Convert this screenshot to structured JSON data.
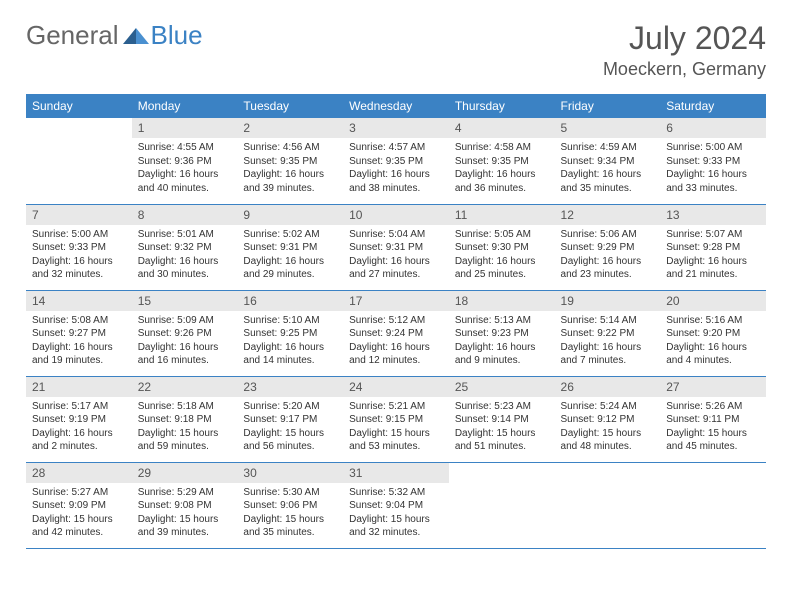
{
  "logo": {
    "part1": "General",
    "part2": "Blue"
  },
  "title": "July 2024",
  "location": "Moeckern, Germany",
  "weekdays": [
    "Sunday",
    "Monday",
    "Tuesday",
    "Wednesday",
    "Thursday",
    "Friday",
    "Saturday"
  ],
  "colors": {
    "header_bg": "#3b82c4",
    "header_text": "#ffffff",
    "daynum_bg": "#e8e8e8",
    "text": "#333333",
    "title_text": "#555555"
  },
  "first_weekday_offset": 1,
  "days": [
    {
      "n": 1,
      "sunrise": "4:55 AM",
      "sunset": "9:36 PM",
      "daylight": "16 hours and 40 minutes."
    },
    {
      "n": 2,
      "sunrise": "4:56 AM",
      "sunset": "9:35 PM",
      "daylight": "16 hours and 39 minutes."
    },
    {
      "n": 3,
      "sunrise": "4:57 AM",
      "sunset": "9:35 PM",
      "daylight": "16 hours and 38 minutes."
    },
    {
      "n": 4,
      "sunrise": "4:58 AM",
      "sunset": "9:35 PM",
      "daylight": "16 hours and 36 minutes."
    },
    {
      "n": 5,
      "sunrise": "4:59 AM",
      "sunset": "9:34 PM",
      "daylight": "16 hours and 35 minutes."
    },
    {
      "n": 6,
      "sunrise": "5:00 AM",
      "sunset": "9:33 PM",
      "daylight": "16 hours and 33 minutes."
    },
    {
      "n": 7,
      "sunrise": "5:00 AM",
      "sunset": "9:33 PM",
      "daylight": "16 hours and 32 minutes."
    },
    {
      "n": 8,
      "sunrise": "5:01 AM",
      "sunset": "9:32 PM",
      "daylight": "16 hours and 30 minutes."
    },
    {
      "n": 9,
      "sunrise": "5:02 AM",
      "sunset": "9:31 PM",
      "daylight": "16 hours and 29 minutes."
    },
    {
      "n": 10,
      "sunrise": "5:04 AM",
      "sunset": "9:31 PM",
      "daylight": "16 hours and 27 minutes."
    },
    {
      "n": 11,
      "sunrise": "5:05 AM",
      "sunset": "9:30 PM",
      "daylight": "16 hours and 25 minutes."
    },
    {
      "n": 12,
      "sunrise": "5:06 AM",
      "sunset": "9:29 PM",
      "daylight": "16 hours and 23 minutes."
    },
    {
      "n": 13,
      "sunrise": "5:07 AM",
      "sunset": "9:28 PM",
      "daylight": "16 hours and 21 minutes."
    },
    {
      "n": 14,
      "sunrise": "5:08 AM",
      "sunset": "9:27 PM",
      "daylight": "16 hours and 19 minutes."
    },
    {
      "n": 15,
      "sunrise": "5:09 AM",
      "sunset": "9:26 PM",
      "daylight": "16 hours and 16 minutes."
    },
    {
      "n": 16,
      "sunrise": "5:10 AM",
      "sunset": "9:25 PM",
      "daylight": "16 hours and 14 minutes."
    },
    {
      "n": 17,
      "sunrise": "5:12 AM",
      "sunset": "9:24 PM",
      "daylight": "16 hours and 12 minutes."
    },
    {
      "n": 18,
      "sunrise": "5:13 AM",
      "sunset": "9:23 PM",
      "daylight": "16 hours and 9 minutes."
    },
    {
      "n": 19,
      "sunrise": "5:14 AM",
      "sunset": "9:22 PM",
      "daylight": "16 hours and 7 minutes."
    },
    {
      "n": 20,
      "sunrise": "5:16 AM",
      "sunset": "9:20 PM",
      "daylight": "16 hours and 4 minutes."
    },
    {
      "n": 21,
      "sunrise": "5:17 AM",
      "sunset": "9:19 PM",
      "daylight": "16 hours and 2 minutes."
    },
    {
      "n": 22,
      "sunrise": "5:18 AM",
      "sunset": "9:18 PM",
      "daylight": "15 hours and 59 minutes."
    },
    {
      "n": 23,
      "sunrise": "5:20 AM",
      "sunset": "9:17 PM",
      "daylight": "15 hours and 56 minutes."
    },
    {
      "n": 24,
      "sunrise": "5:21 AM",
      "sunset": "9:15 PM",
      "daylight": "15 hours and 53 minutes."
    },
    {
      "n": 25,
      "sunrise": "5:23 AM",
      "sunset": "9:14 PM",
      "daylight": "15 hours and 51 minutes."
    },
    {
      "n": 26,
      "sunrise": "5:24 AM",
      "sunset": "9:12 PM",
      "daylight": "15 hours and 48 minutes."
    },
    {
      "n": 27,
      "sunrise": "5:26 AM",
      "sunset": "9:11 PM",
      "daylight": "15 hours and 45 minutes."
    },
    {
      "n": 28,
      "sunrise": "5:27 AM",
      "sunset": "9:09 PM",
      "daylight": "15 hours and 42 minutes."
    },
    {
      "n": 29,
      "sunrise": "5:29 AM",
      "sunset": "9:08 PM",
      "daylight": "15 hours and 39 minutes."
    },
    {
      "n": 30,
      "sunrise": "5:30 AM",
      "sunset": "9:06 PM",
      "daylight": "15 hours and 35 minutes."
    },
    {
      "n": 31,
      "sunrise": "5:32 AM",
      "sunset": "9:04 PM",
      "daylight": "15 hours and 32 minutes."
    }
  ],
  "labels": {
    "sunrise": "Sunrise:",
    "sunset": "Sunset:",
    "daylight": "Daylight:"
  }
}
